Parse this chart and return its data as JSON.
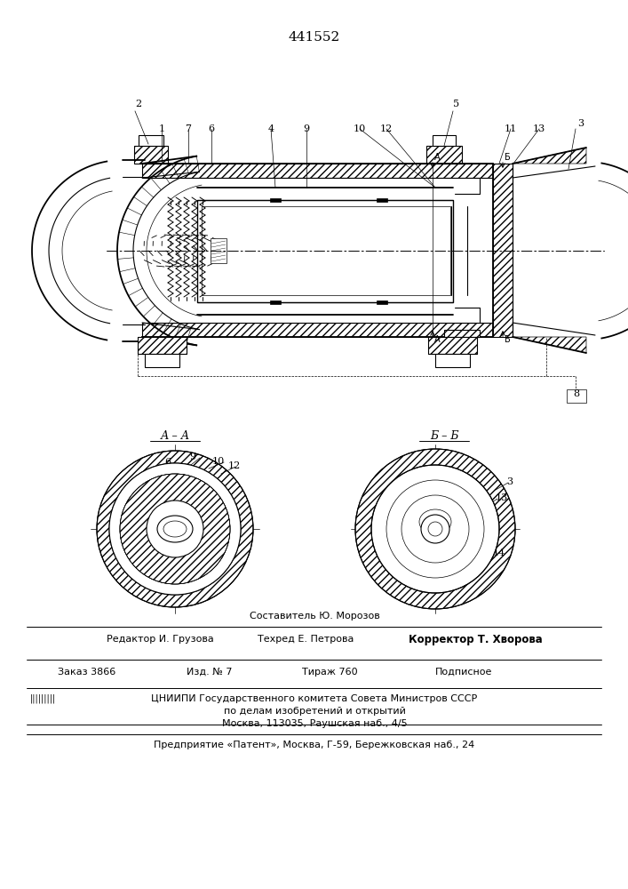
{
  "patent_number": "441552",
  "bg_color": "#ffffff",
  "line_color": "#000000",
  "footer_lines": [
    "Составитель Ю. Морозов",
    "Редактор И. Грузова",
    "Техред Е. Петрова",
    "Корректор Т. Хворова",
    "Заказ 3866",
    "Изд. № 7",
    "Тираж 760",
    "Подписное",
    "ЦНИИПИ Государственного комитета Совета Министров СССР",
    "по делам изобретений и открытий",
    "Москва, 113035, Раушская наб., 4/5",
    "Предприятие «Патент», Москва, Г-59, Бережковская наб., 24"
  ],
  "aa_label": "А – А",
  "bb_label": "Б – Б"
}
